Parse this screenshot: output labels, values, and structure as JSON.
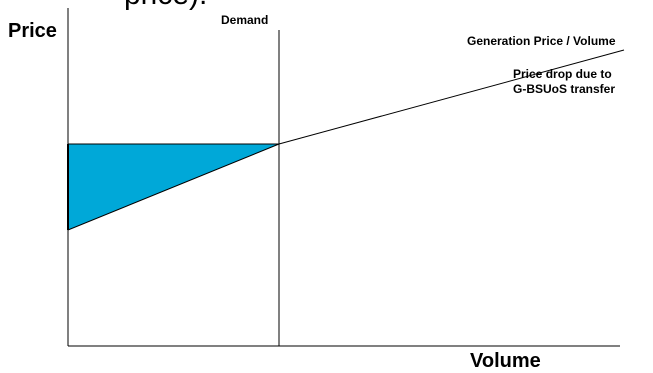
{
  "diagram": {
    "cut_text": "price).",
    "y_axis_title": "Price",
    "x_axis_title": "Volume",
    "demand_label": "Demand",
    "generation_label": "Generation Price / Volume",
    "price_drop_label_line1": "Price drop due to",
    "price_drop_label_line2": "G-BSUoS transfer",
    "shaded_region_color": "#00a8d8",
    "line_color": "#000000"
  }
}
